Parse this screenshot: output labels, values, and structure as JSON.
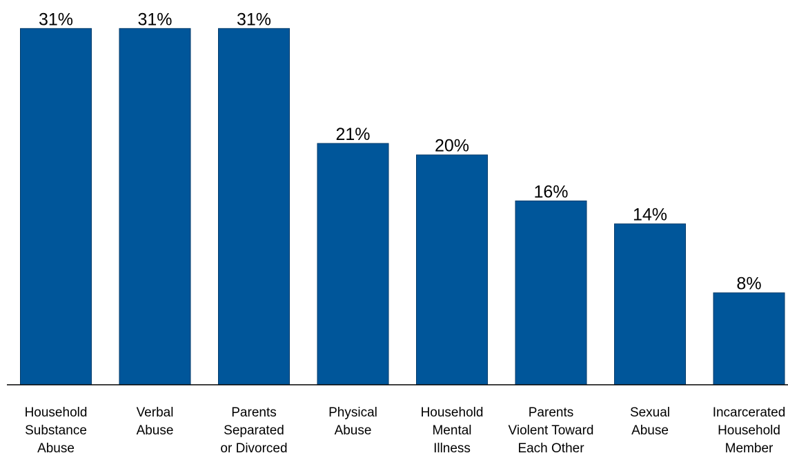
{
  "chart_data": {
    "type": "bar",
    "categories": [
      [
        "Household",
        "Substance",
        "Abuse"
      ],
      [
        "Verbal",
        "Abuse"
      ],
      [
        "Parents",
        "Separated",
        "or Divorced"
      ],
      [
        "Physical",
        "Abuse"
      ],
      [
        "Household",
        "Mental",
        "Illness"
      ],
      [
        "Parents",
        "Violent Toward",
        "Each Other"
      ],
      [
        "Sexual",
        "Abuse"
      ],
      [
        "Incarcerated",
        "Household",
        "Member"
      ]
    ],
    "values": [
      31,
      31,
      31,
      21,
      20,
      16,
      14,
      8
    ],
    "data_labels": [
      "31%",
      "31%",
      "31%",
      "21%",
      "20%",
      "16%",
      "14%",
      "8%"
    ],
    "ylim": [
      0,
      33
    ],
    "bar_color": "#00569a",
    "axis_color": "#000000",
    "grid": false,
    "legend": "none",
    "title": "",
    "xlabel": "",
    "ylabel": ""
  }
}
